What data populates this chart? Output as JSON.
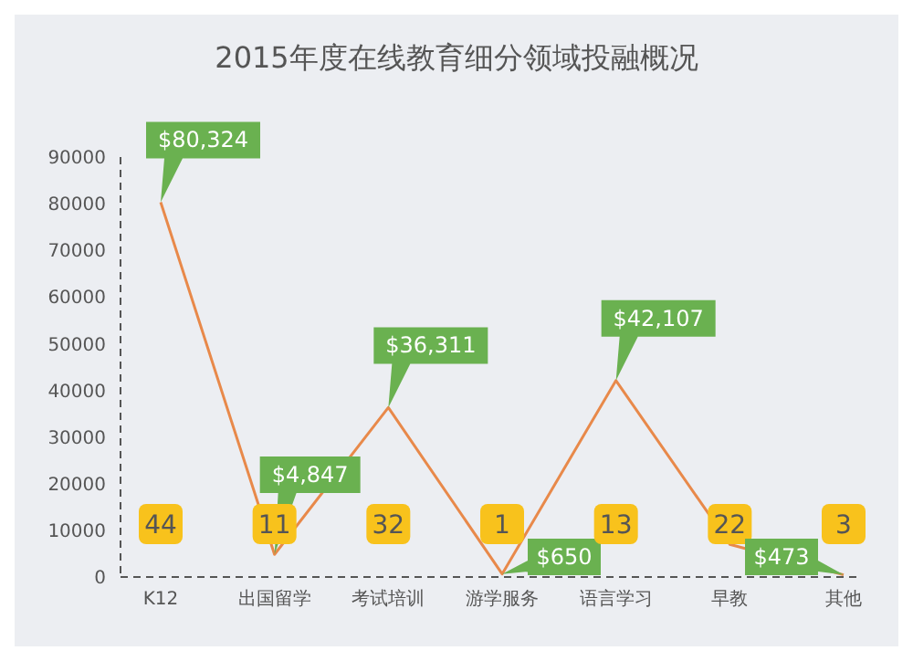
{
  "chart_data": {
    "type": "line",
    "title": "2015年度在线教育细分领域投融概况",
    "categories": [
      "K12",
      "出国留学",
      "考试培训",
      "游学服务",
      "语言学习",
      "早教",
      "其他"
    ],
    "series": [
      {
        "color": "#e8894a",
        "values": [
          80324,
          4847,
          36311,
          650,
          42107,
          7000,
          473
        ],
        "value_labels": [
          "$80,324",
          "$4,847",
          "$36,311",
          "$650",
          "$42,107",
          null,
          "$473"
        ]
      }
    ],
    "annotations": [
      {
        "text": "44",
        "x": "K12"
      },
      {
        "text": "11",
        "x": "出国留学"
      },
      {
        "text": "32",
        "x": "考试培训"
      },
      {
        "text": "1",
        "x": "游学服务"
      },
      {
        "text": "13",
        "x": "语言学习"
      },
      {
        "text": "22",
        "x": "早教"
      },
      {
        "text": "3",
        "x": "其他"
      }
    ],
    "ylim": [
      0,
      90000
    ],
    "yticks": [
      0,
      10000,
      20000,
      30000,
      40000,
      50000,
      60000,
      70000,
      80000,
      90000
    ],
    "grid": false,
    "legend": false,
    "marker": "none",
    "line_style": "solid"
  }
}
